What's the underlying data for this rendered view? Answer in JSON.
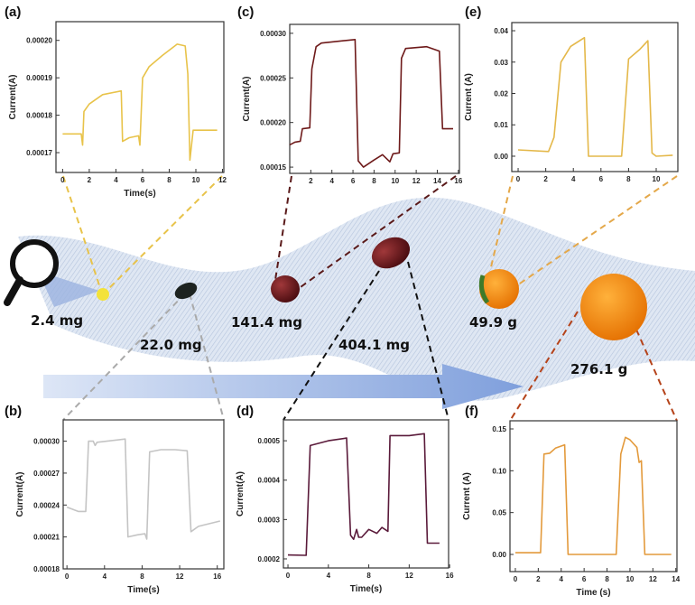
{
  "masses": [
    "2.4 mg",
    "22.0 mg",
    "141.4 mg",
    "404.1 mg",
    "49.9 g",
    "276.1 g"
  ],
  "colors": {
    "band": "#c9d6ea",
    "arrow": "#8aa6da",
    "panel_a": "#e8c34a",
    "panel_b": "#c4c4c4",
    "panel_c": "#6e1a1a",
    "panel_d": "#5a1a3a",
    "panel_e": "#e4b84a",
    "panel_f": "#e39a3c"
  },
  "icons": [
    "magnifying-glass-icon",
    "seed-icon",
    "bean-icon",
    "grape-icon",
    "date-icon",
    "small-orange-icon",
    "orange-icon"
  ],
  "chart_data": [
    {
      "id": "a",
      "panel_label": "(a)",
      "type": "line",
      "xlabel": "Time(s)",
      "ylabel": "Current(A)",
      "xlim": [
        -0.5,
        12.1
      ],
      "ylim": [
        0.0001647,
        0.000205
      ],
      "xticks": [
        0,
        2,
        4,
        6,
        8,
        10,
        12
      ],
      "xtick_labels": [
        "0",
        "2",
        "4",
        "6",
        "8",
        "10",
        "12"
      ],
      "yticks": [
        0.00017,
        0.00018,
        0.00019,
        0.0002
      ],
      "ytick_labels": [
        "0.00017",
        "0.00018",
        "0.00019",
        "0.00020"
      ],
      "x": [
        0,
        1.4,
        1.5,
        1.6,
        2,
        3,
        4.4,
        4.5,
        5,
        5.7,
        5.8,
        6,
        6.5,
        7.5,
        8.6,
        9.2,
        9.4,
        9.55,
        9.8,
        11.6
      ],
      "y": [
        0.000175,
        0.000175,
        0.000172,
        0.000181,
        0.000183,
        0.0001855,
        0.0001865,
        0.000173,
        0.000174,
        0.0001745,
        0.000172,
        0.00019,
        0.000193,
        0.000196,
        0.000199,
        0.0001985,
        0.000191,
        0.000168,
        0.000176,
        0.000176
      ]
    },
    {
      "id": "b",
      "panel_label": "(b)",
      "type": "line",
      "xlabel": "Time(s)",
      "ylabel": "Current(A)",
      "xlim": [
        -0.4,
        16.7
      ],
      "ylim": [
        0.00018,
        0.00032
      ],
      "xticks": [
        0,
        4,
        8,
        12,
        16
      ],
      "xtick_labels": [
        "0",
        "4",
        "8",
        "12",
        "16"
      ],
      "yticks": [
        0.00018,
        0.00021,
        0.00024,
        0.00027,
        0.0003
      ],
      "ytick_labels": [
        "0.00018",
        "0.00021",
        "0.00024",
        "0.00027",
        "0.00030"
      ],
      "x": [
        0,
        1.2,
        2,
        2.3,
        2.8,
        3,
        3.2,
        6.2,
        6.5,
        7.5,
        8.3,
        8.5,
        8.8,
        10,
        11.5,
        12.8,
        13.2,
        14,
        16.3
      ],
      "y": [
        0.000238,
        0.000234,
        0.000234,
        0.0003,
        0.0003,
        0.000296,
        0.000299,
        0.000302,
        0.00021,
        0.000212,
        0.000213,
        0.000208,
        0.00029,
        0.000292,
        0.000292,
        0.000291,
        0.000215,
        0.00022,
        0.000225
      ]
    },
    {
      "id": "c",
      "panel_label": "(c)",
      "type": "line",
      "xlabel": "",
      "ylabel": "Current(A)",
      "xlim": [
        0,
        16.1
      ],
      "ylim": [
        0.000143,
        0.00031
      ],
      "xticks": [
        2,
        4,
        6,
        8,
        10,
        12,
        14,
        16
      ],
      "xtick_labels": [
        "2",
        "4",
        "6",
        "8",
        "10",
        "12",
        "14",
        "16"
      ],
      "yticks": [
        0.00015,
        0.0002,
        0.00025,
        0.0003
      ],
      "ytick_labels": [
        "0.00015",
        "0.00020",
        "0.00025",
        "0.00030"
      ],
      "x": [
        0,
        0.5,
        1,
        1.2,
        1.9,
        2.1,
        2.5,
        3,
        6.2,
        6.5,
        7,
        8,
        8.8,
        9.5,
        9.8,
        10.4,
        10.6,
        11,
        13,
        14.2,
        14.5,
        15.5
      ],
      "y": [
        0.000175,
        0.000178,
        0.000179,
        0.000193,
        0.000194,
        0.00026,
        0.000285,
        0.000289,
        0.000293,
        0.000157,
        0.00015,
        0.000158,
        0.000164,
        0.000156,
        0.000165,
        0.000166,
        0.000272,
        0.000283,
        0.000285,
        0.00028,
        0.000193,
        0.000193
      ]
    },
    {
      "id": "d",
      "panel_label": "(d)",
      "type": "line",
      "xlabel": "Time(s)",
      "ylabel": "Current(A)",
      "xlim": [
        -0.45,
        15.9
      ],
      "ylim": [
        0.000177,
        0.000553
      ],
      "xticks": [
        0,
        4,
        8,
        12,
        16
      ],
      "xtick_labels": [
        "0",
        "4",
        "8",
        "12",
        "16"
      ],
      "yticks": [
        0.0002,
        0.0003,
        0.0004,
        0.0005
      ],
      "ytick_labels": [
        "0.0002",
        "0.0003",
        "0.0004",
        "0.0005"
      ],
      "x": [
        0,
        1.8,
        2.2,
        4,
        5.8,
        6.2,
        6.5,
        6.8,
        7,
        7.3,
        8,
        8.8,
        9.3,
        9.9,
        10.1,
        12,
        13.5,
        13.8,
        15
      ],
      "y": [
        0.00021,
        0.000209,
        0.000488,
        0.0005,
        0.000507,
        0.00026,
        0.00025,
        0.000275,
        0.000255,
        0.000255,
        0.000275,
        0.000265,
        0.00028,
        0.00027,
        0.000513,
        0.000513,
        0.000518,
        0.00024,
        0.00024
      ]
    },
    {
      "id": "e",
      "panel_label": "(e)",
      "type": "line",
      "xlabel": "",
      "ylabel": "Current (A)",
      "xlim": [
        -0.46,
        11.57
      ],
      "ylim": [
        -0.0049,
        0.0426
      ],
      "xticks": [
        0,
        2,
        4,
        6,
        8,
        10
      ],
      "xtick_labels": [
        "0",
        "2",
        "4",
        "6",
        "8",
        "10"
      ],
      "yticks": [
        0,
        0.01,
        0.02,
        0.03,
        0.04
      ],
      "ytick_labels": [
        "0.00",
        "0.01",
        "0.02",
        "0.03",
        "0.04"
      ],
      "x": [
        0,
        2.2,
        2.6,
        3.1,
        3.8,
        4.8,
        5.1,
        7.5,
        8,
        8.8,
        9.4,
        9.7,
        10,
        11.2
      ],
      "y": [
        0.002,
        0.0015,
        0.006,
        0.03,
        0.035,
        0.0378,
        0,
        0,
        0.031,
        0.034,
        0.0368,
        0.001,
        0,
        0.0003
      ]
    },
    {
      "id": "f",
      "panel_label": "(f)",
      "type": "line",
      "xlabel": "Time (s)",
      "ylabel": "Current (A)",
      "xlim": [
        -0.47,
        14.1
      ],
      "ylim": [
        -0.0205,
        0.1597
      ],
      "xticks": [
        0,
        2,
        4,
        6,
        8,
        10,
        12,
        14
      ],
      "xtick_labels": [
        "0",
        "2",
        "4",
        "6",
        "8",
        "10",
        "12",
        "14"
      ],
      "yticks": [
        0,
        0.05,
        0.1,
        0.15
      ],
      "ytick_labels": [
        "0.00",
        "0.05",
        "0.10",
        "0.15"
      ],
      "x": [
        0,
        2.2,
        2.5,
        3,
        3.5,
        4.3,
        4.6,
        8.8,
        9.2,
        9.6,
        10,
        10.6,
        10.8,
        11,
        11.3,
        13.6
      ],
      "y": [
        0.002,
        0.002,
        0.12,
        0.121,
        0.127,
        0.131,
        0,
        0,
        0.12,
        0.14,
        0.137,
        0.128,
        0.11,
        0.112,
        0,
        0
      ]
    }
  ]
}
